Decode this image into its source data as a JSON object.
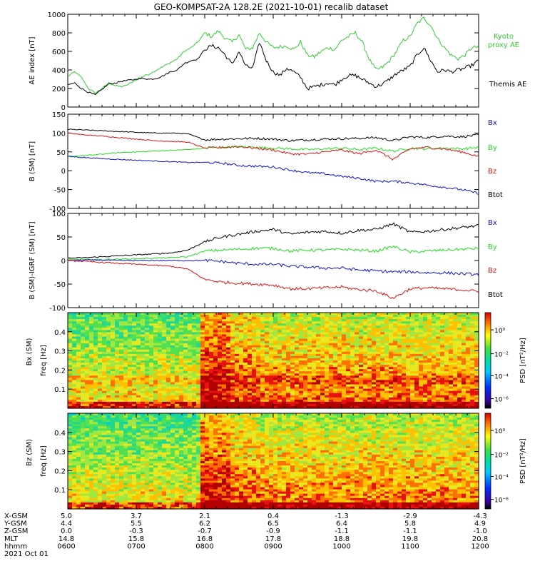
{
  "title": "GEO-KOMPSAT-2A 128.2E (2021-10-01) recalib dataset",
  "colors": {
    "black": "#000000",
    "green": "#22dd22",
    "red": "#dd1111",
    "blue": "#1111cc",
    "kyoto": "#33cc33"
  },
  "chart_data": [
    {
      "type": "line",
      "panel": "ae",
      "ylabel": "AE index [nT]",
      "ylim": [
        0,
        1000
      ],
      "yticks": [
        "0",
        "200",
        "400",
        "600",
        "800",
        "1000"
      ],
      "x_hours": [
        6,
        6.1,
        6.2,
        6.3,
        6.4,
        6.5,
        6.6,
        6.7,
        6.8,
        6.9,
        7,
        7.1,
        7.2,
        7.3,
        7.4,
        7.5,
        7.6,
        7.7,
        7.8,
        7.9,
        8,
        8.1,
        8.2,
        8.3,
        8.4,
        8.5,
        8.6,
        8.7,
        8.8,
        8.9,
        9,
        9.1,
        9.2,
        9.3,
        9.4,
        9.5,
        9.6,
        9.7,
        9.8,
        9.9,
        10,
        10.1,
        10.2,
        10.3,
        10.4,
        10.5,
        10.6,
        10.7,
        10.8,
        10.9,
        11,
        11.1,
        11.2,
        11.3,
        11.4,
        11.5,
        11.6,
        11.7,
        11.8,
        11.9,
        12
      ],
      "series": [
        {
          "name": "Kyoto proxy AE",
          "color": "#33cc33",
          "values": [
            330,
            380,
            320,
            200,
            150,
            200,
            260,
            230,
            220,
            250,
            300,
            330,
            360,
            400,
            440,
            480,
            520,
            600,
            640,
            700,
            800,
            760,
            820,
            740,
            700,
            780,
            620,
            640,
            800,
            700,
            640,
            650,
            660,
            620,
            700,
            560,
            540,
            600,
            640,
            620,
            720,
            760,
            800,
            700,
            520,
            400,
            430,
            500,
            600,
            720,
            760,
            900,
            960,
            880,
            740,
            640,
            560,
            520,
            560,
            640,
            650
          ]
        },
        {
          "name": "Themis AE",
          "color": "#000000",
          "values": [
            240,
            260,
            200,
            160,
            130,
            190,
            250,
            260,
            280,
            290,
            300,
            310,
            300,
            310,
            340,
            380,
            400,
            470,
            500,
            520,
            620,
            660,
            640,
            560,
            460,
            600,
            440,
            420,
            700,
            500,
            380,
            340,
            420,
            380,
            320,
            200,
            220,
            240,
            260,
            240,
            300,
            340,
            340,
            300,
            260,
            220,
            250,
            300,
            360,
            400,
            440,
            560,
            640,
            500,
            380,
            400,
            380,
            400,
            420,
            450,
            500
          ]
        }
      ],
      "series_labels": [
        "Kyoto",
        "proxy AE",
        "Themis AE"
      ]
    },
    {
      "type": "line",
      "panel": "b_sm",
      "ylabel": "B (SM) [nT]",
      "ylim": [
        -100,
        150
      ],
      "yticks": [
        "-100",
        "-50",
        "0",
        "50",
        "100",
        "150"
      ],
      "x_hours": [
        6,
        6.25,
        6.5,
        6.75,
        7,
        7.25,
        7.5,
        7.75,
        8,
        8.25,
        8.5,
        8.75,
        9,
        9.25,
        9.5,
        9.75,
        10,
        10.25,
        10.5,
        10.75,
        11,
        11.25,
        11.5,
        11.75,
        12
      ],
      "series": [
        {
          "name": "Btot",
          "color": "#000000",
          "values": [
            110,
            108,
            106,
            104,
            102,
            100,
            100,
            98,
            82,
            84,
            85,
            86,
            84,
            80,
            82,
            84,
            85,
            86,
            88,
            80,
            90,
            88,
            92,
            90,
            95
          ]
        },
        {
          "name": "By",
          "color": "#22dd22",
          "values": [
            38,
            40,
            44,
            48,
            50,
            52,
            54,
            56,
            60,
            62,
            64,
            62,
            60,
            58,
            56,
            58,
            60,
            56,
            60,
            52,
            60,
            58,
            60,
            58,
            62
          ]
        },
        {
          "name": "Bz",
          "color": "#dd1111",
          "values": [
            100,
            95,
            92,
            88,
            84,
            80,
            78,
            76,
            60,
            62,
            64,
            60,
            55,
            45,
            44,
            50,
            55,
            45,
            55,
            30,
            58,
            62,
            58,
            50,
            38
          ]
        },
        {
          "name": "Bx",
          "color": "#1111cc",
          "values": [
            38,
            35,
            32,
            30,
            28,
            26,
            24,
            22,
            22,
            20,
            14,
            12,
            10,
            2,
            -5,
            -8,
            -15,
            -20,
            -28,
            -28,
            -32,
            -38,
            -44,
            -50,
            -60
          ]
        }
      ],
      "series_labels": [
        "Bx",
        "By",
        "Bz",
        "Btot"
      ]
    },
    {
      "type": "line",
      "panel": "b_sm_igrf",
      "ylabel": "B (SM)-IGRF (SM) [nT]",
      "ylim": [
        -100,
        100
      ],
      "yticks": [
        "-100",
        "-50",
        "0",
        "50",
        "100"
      ],
      "x_hours": [
        6,
        6.25,
        6.5,
        6.75,
        7,
        7.25,
        7.5,
        7.75,
        8,
        8.25,
        8.5,
        8.75,
        9,
        9.25,
        9.5,
        9.75,
        10,
        10.25,
        10.5,
        10.75,
        11,
        11.25,
        11.5,
        11.75,
        12
      ],
      "series": [
        {
          "name": "Btot",
          "color": "#000000",
          "values": [
            5,
            6,
            8,
            10,
            12,
            14,
            16,
            22,
            40,
            50,
            56,
            62,
            66,
            56,
            60,
            62,
            58,
            64,
            66,
            78,
            60,
            62,
            66,
            70,
            74
          ]
        },
        {
          "name": "By",
          "color": "#22dd22",
          "values": [
            3,
            2,
            2,
            3,
            4,
            5,
            6,
            8,
            20,
            22,
            24,
            26,
            26,
            20,
            22,
            22,
            24,
            22,
            20,
            30,
            18,
            20,
            22,
            24,
            26
          ]
        },
        {
          "name": "Bx",
          "color": "#1111cc",
          "values": [
            0,
            1,
            1,
            0,
            0,
            0,
            0,
            0,
            0,
            -2,
            -6,
            -8,
            -8,
            -12,
            -14,
            -16,
            -16,
            -20,
            -22,
            -24,
            -24,
            -26,
            -26,
            -28,
            -30
          ]
        },
        {
          "name": "Bz",
          "color": "#dd1111",
          "values": [
            0,
            -2,
            -4,
            -6,
            -8,
            -10,
            -12,
            -18,
            -40,
            -46,
            -48,
            -50,
            -52,
            -60,
            -60,
            -58,
            -56,
            -62,
            -64,
            -80,
            -60,
            -58,
            -60,
            -62,
            -66
          ]
        }
      ],
      "series_labels": [
        "Bx",
        "By",
        "Bz",
        "Btot"
      ]
    },
    {
      "type": "heatmap",
      "panel": "bx_spec",
      "ylabel": "Bx (SM) freq [Hz]",
      "yticks": [
        "0.1",
        "0.2",
        "0.3",
        "0.4"
      ],
      "ylim": [
        0,
        0.5
      ],
      "colorbar_label": "PSD [nT²/Hz]",
      "colorbar_ticks": [
        "10⁰",
        "10⁻²",
        "10⁻⁴",
        "10⁻⁶"
      ]
    },
    {
      "type": "heatmap",
      "panel": "bz_spec",
      "ylabel": "Bz (SM) freq [Hz]",
      "yticks": [
        "0.1",
        "0.2",
        "0.3",
        "0.4"
      ],
      "ylim": [
        0,
        0.5
      ],
      "colorbar_label": "PSD [nT²/Hz]",
      "colorbar_ticks": [
        "10⁰",
        "10⁻²",
        "10⁻⁴",
        "10⁻⁶"
      ]
    }
  ],
  "xaxis": {
    "xlim_hours": [
      6,
      12
    ],
    "rows": [
      {
        "label": "X-GSM",
        "values": [
          "5.0",
          "3.7",
          "2.1",
          "0.4",
          "-1.3",
          "-2.9",
          "-4.3"
        ]
      },
      {
        "label": "Y-GSM",
        "values": [
          "4.4",
          "5.5",
          "6.2",
          "6.5",
          "6.4",
          "5.8",
          "4.9"
        ]
      },
      {
        "label": "Z-GSM",
        "values": [
          "0.0",
          "-0.3",
          "-0.7",
          "-0.9",
          "-1.1",
          "-1.1",
          "-1.0"
        ]
      },
      {
        "label": "MLT",
        "values": [
          "14.8",
          "15.8",
          "16.8",
          "17.8",
          "18.8",
          "19.8",
          "20.8"
        ]
      },
      {
        "label": "hhmm",
        "values": [
          "0600",
          "0700",
          "0800",
          "0900",
          "1000",
          "1100",
          "1200"
        ]
      }
    ],
    "date": "2021 Oct 01"
  }
}
